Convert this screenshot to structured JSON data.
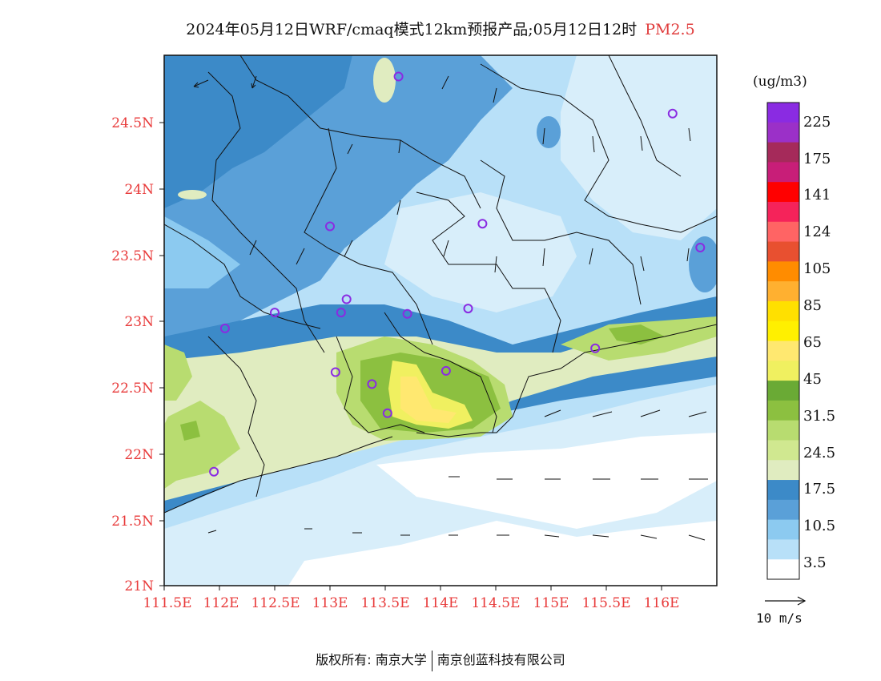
{
  "title": {
    "main": "2024年05月12日WRF/cmaq模式12km预报产品;05月12日12时",
    "pollutant": "PM2.5"
  },
  "axes": {
    "lat_labels": [
      "24.5N",
      "24N",
      "23.5N",
      "23N",
      "22.5N",
      "22N",
      "21.5N",
      "21N"
    ],
    "lon_labels": [
      "111.5E",
      "112E",
      "112.5E",
      "113E",
      "113.5E",
      "114E",
      "114.5E",
      "115E",
      "115.5E",
      "116E"
    ]
  },
  "legend": {
    "unit": "(ug/m3)",
    "labels": [
      "225",
      "175",
      "141",
      "124",
      "105",
      "85",
      "65",
      "45",
      "31.5",
      "24.5",
      "17.5",
      "10.5",
      "3.5"
    ],
    "colors": [
      "#8a2be2",
      "#9b30c8",
      "#a52a5a",
      "#c81e78",
      "#ff0000",
      "#f5235a",
      "#ff6464",
      "#e85030",
      "#ff8c00",
      "#ffb030",
      "#ffe000",
      "#fff000",
      "#ffe870",
      "#f0f060",
      "#6aaa35",
      "#8cc040",
      "#b8dc70",
      "#d0e890",
      "#e0ecc0",
      "#3c8ac8",
      "#5aa0d8",
      "#8ccaf0",
      "#b8e0f8",
      "#ffffff"
    ]
  },
  "wind_reference": {
    "label": "10 m/s"
  },
  "stations": [
    {
      "name": "station",
      "lon": 113.62,
      "lat": 24.84
    },
    {
      "name": "station",
      "lon": 116.1,
      "lat": 24.56
    },
    {
      "name": "station",
      "lon": 113.0,
      "lat": 23.71
    },
    {
      "name": "station",
      "lon": 114.38,
      "lat": 23.73
    },
    {
      "name": "station",
      "lon": 116.35,
      "lat": 23.55
    },
    {
      "name": "station",
      "lon": 113.15,
      "lat": 23.16
    },
    {
      "name": "station",
      "lon": 112.5,
      "lat": 23.06
    },
    {
      "name": "station",
      "lon": 113.1,
      "lat": 23.06
    },
    {
      "name": "station",
      "lon": 113.7,
      "lat": 23.05
    },
    {
      "name": "station",
      "lon": 114.25,
      "lat": 23.09
    },
    {
      "name": "station",
      "lon": 112.05,
      "lat": 22.94
    },
    {
      "name": "station",
      "lon": 115.4,
      "lat": 22.79
    },
    {
      "name": "station",
      "lon": 113.05,
      "lat": 22.61
    },
    {
      "name": "station",
      "lon": 114.05,
      "lat": 22.62
    },
    {
      "name": "station",
      "lon": 113.38,
      "lat": 22.52
    },
    {
      "name": "station",
      "lon": 113.52,
      "lat": 22.3
    },
    {
      "name": "station",
      "lon": 111.95,
      "lat": 21.86
    }
  ],
  "copyright": {
    "prefix": "版权所有: 南京大学",
    "suffix": "南京创蓝科技有限公司"
  }
}
